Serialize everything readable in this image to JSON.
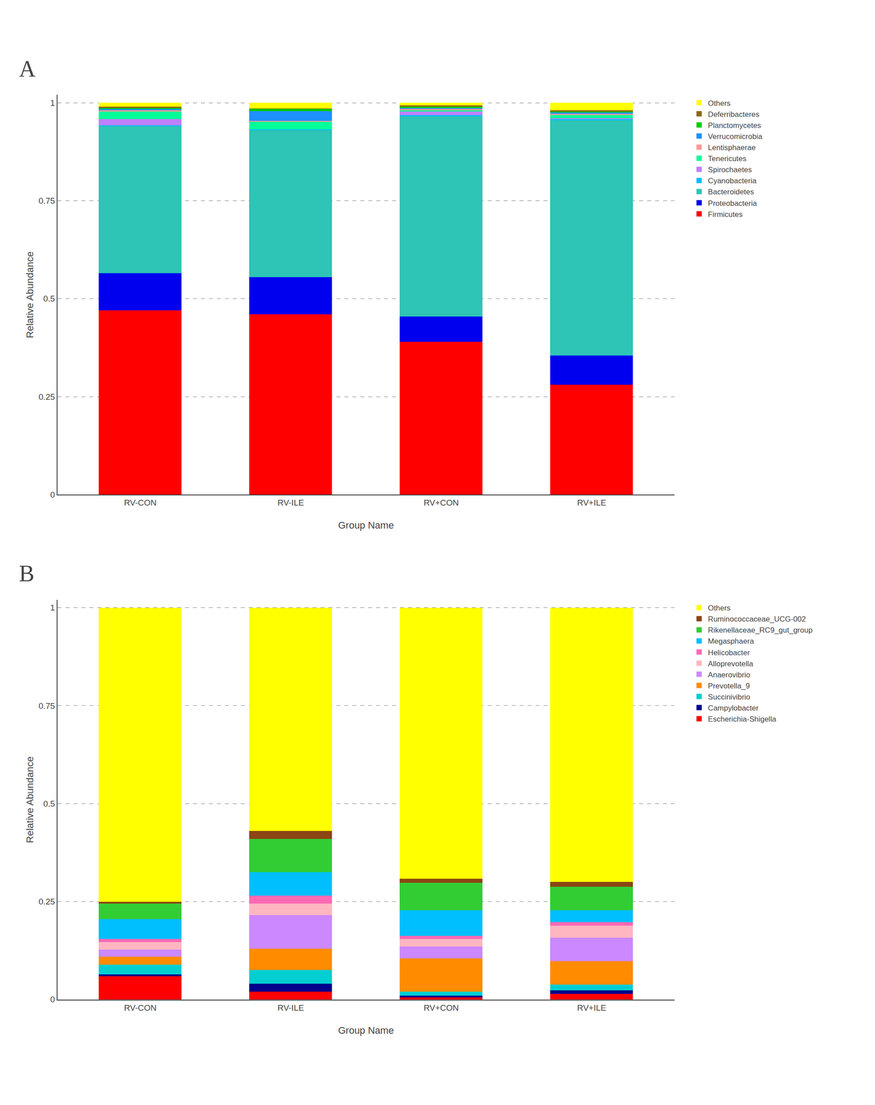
{
  "chart_data": [
    {
      "type": "bar",
      "stacked": true,
      "title": "A",
      "x_label": "Group Name",
      "y_label": "Relative Abundance",
      "categories": [
        "RV-CON",
        "RV-ILE",
        "RV+CON",
        "RV+ILE"
      ],
      "series": [
        {
          "name": "Firmicutes",
          "color": "#FF0000",
          "values": [
            0.47,
            0.46,
            0.39,
            0.28
          ]
        },
        {
          "name": "Proteobacteria",
          "color": "#0000EE",
          "values": [
            0.095,
            0.095,
            0.065,
            0.075
          ]
        },
        {
          "name": "Bacteroidetes",
          "color": "#2EC4B6",
          "values": [
            0.375,
            0.375,
            0.51,
            0.6
          ]
        },
        {
          "name": "Cyanobacteria",
          "color": "#00BFFF",
          "values": [
            0.003,
            0.002,
            0.003,
            0.003
          ]
        },
        {
          "name": "Spirochaetes",
          "color": "#BF80FF",
          "values": [
            0.015,
            0.0,
            0.01,
            0.003
          ]
        },
        {
          "name": "Tenericutes",
          "color": "#00FF99",
          "values": [
            0.02,
            0.02,
            0.003,
            0.008
          ]
        },
        {
          "name": "Lentisphaerae",
          "color": "#FF9999",
          "values": [
            0.003,
            0.002,
            0.003,
            0.003
          ]
        },
        {
          "name": "Verrucomicrobia",
          "color": "#1E90FF",
          "values": [
            0.003,
            0.025,
            0.003,
            0.003
          ]
        },
        {
          "name": "Planctomycetes",
          "color": "#00CC00",
          "values": [
            0.003,
            0.005,
            0.003,
            0.003
          ]
        },
        {
          "name": "Deferribacteres",
          "color": "#8B6914",
          "values": [
            0.003,
            0.002,
            0.003,
            0.003
          ]
        },
        {
          "name": "Others",
          "color": "#FFFF00",
          "values": [
            0.01,
            0.014,
            0.007,
            0.019
          ]
        }
      ],
      "ylim": [
        0,
        1.02
      ],
      "yticks": [
        0,
        0.25,
        0.5,
        0.75,
        1
      ],
      "grid": true,
      "legend": "right"
    },
    {
      "type": "bar",
      "stacked": true,
      "title": "B",
      "x_label": "Group Name",
      "y_label": "Relative Abundance",
      "categories": [
        "RV-CON",
        "RV-ILE",
        "RV+CON",
        "RV+ILE"
      ],
      "series": [
        {
          "name": "Escherichia-Shigella",
          "color": "#FF0000",
          "values": [
            0.06,
            0.02,
            0.005,
            0.015
          ]
        },
        {
          "name": "Campylobacter",
          "color": "#00008B",
          "values": [
            0.004,
            0.02,
            0.005,
            0.008
          ]
        },
        {
          "name": "Succinivibrio",
          "color": "#00CED1",
          "values": [
            0.025,
            0.035,
            0.01,
            0.015
          ]
        },
        {
          "name": "Prevotella_9",
          "color": "#FF8C00",
          "values": [
            0.02,
            0.055,
            0.085,
            0.06
          ]
        },
        {
          "name": "Anaerovibrio",
          "color": "#CC88FF",
          "values": [
            0.018,
            0.085,
            0.03,
            0.06
          ]
        },
        {
          "name": "Alloprevotella",
          "color": "#FFB6C1",
          "values": [
            0.02,
            0.03,
            0.02,
            0.03
          ]
        },
        {
          "name": "Helicobacter",
          "color": "#FF69B4",
          "values": [
            0.008,
            0.02,
            0.008,
            0.01
          ]
        },
        {
          "name": "Megasphaera",
          "color": "#00BFFF",
          "values": [
            0.05,
            0.06,
            0.065,
            0.03
          ]
        },
        {
          "name": "Rikenellaceae_RC9_gut_group",
          "color": "#32CD32",
          "values": [
            0.04,
            0.085,
            0.07,
            0.06
          ]
        },
        {
          "name": "Ruminococcaceae_UCG-002",
          "color": "#8B4513",
          "values": [
            0.005,
            0.02,
            0.01,
            0.012
          ]
        },
        {
          "name": "Others",
          "color": "#FFFF00",
          "values": [
            0.75,
            0.57,
            0.692,
            0.7
          ]
        }
      ],
      "ylim": [
        0,
        1.02
      ],
      "yticks": [
        0,
        0.25,
        0.5,
        0.75,
        1
      ],
      "grid": true,
      "legend": "right"
    }
  ]
}
